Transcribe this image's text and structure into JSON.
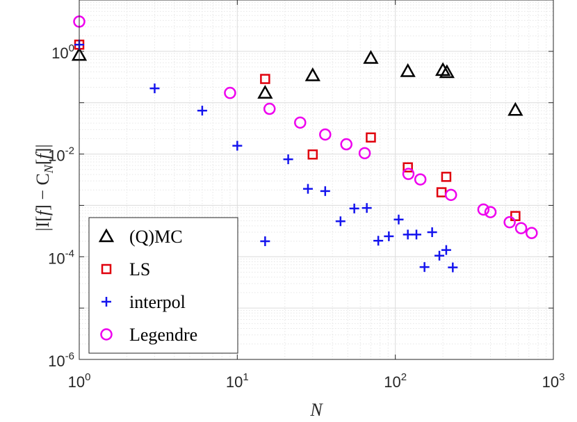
{
  "chart_data": {
    "type": "scatter",
    "x_scale": "log",
    "y_scale": "log",
    "xlim": [
      1,
      1000
    ],
    "ylim": [
      1e-06,
      10
    ],
    "grid": true,
    "minor_grid": true,
    "xlabel": "N",
    "ylabel": "|I[f] − C_N[f]|",
    "ylabel_parts": {
      "pre": "|I[",
      "f1": "f",
      "mid": "] − C",
      "sub": "N",
      "open": "[",
      "f2": "f",
      "post": "]|"
    },
    "xticks": [
      {
        "value": 1,
        "base": "10",
        "exp": "0"
      },
      {
        "value": 10,
        "base": "10",
        "exp": "1"
      },
      {
        "value": 100,
        "base": "10",
        "exp": "2"
      },
      {
        "value": 1000,
        "base": "10",
        "exp": "3"
      }
    ],
    "yticks": [
      {
        "value": 1,
        "base": "10",
        "exp": "0"
      },
      {
        "value": 0.01,
        "base": "10",
        "exp": "-2"
      },
      {
        "value": 0.0001,
        "base": "10",
        "exp": "-4"
      },
      {
        "value": 1e-06,
        "base": "10",
        "exp": "-6"
      }
    ],
    "legend_position": "bottom-left",
    "series": [
      {
        "name": "(Q)MC",
        "marker": "triangle",
        "color": "#000000",
        "points": [
          [
            1,
            0.85
          ],
          [
            15,
            0.155
          ],
          [
            30,
            0.34
          ],
          [
            70,
            0.74
          ],
          [
            120,
            0.41
          ],
          [
            200,
            0.43
          ],
          [
            212,
            0.39
          ],
          [
            575,
            0.072
          ]
        ]
      },
      {
        "name": "LS",
        "marker": "square",
        "color": "#e0000d",
        "points": [
          [
            1,
            1.35
          ],
          [
            15,
            0.29
          ],
          [
            30,
            0.0098
          ],
          [
            70,
            0.021
          ],
          [
            120,
            0.0055
          ],
          [
            196,
            0.0018
          ],
          [
            210,
            0.0036
          ],
          [
            575,
            0.00062
          ]
        ]
      },
      {
        "name": "interpol",
        "marker": "plus",
        "color": "#1414ee",
        "points": [
          [
            1,
            1.35
          ],
          [
            3,
            0.19
          ],
          [
            6,
            0.07
          ],
          [
            10,
            0.0145
          ],
          [
            15,
            0.0002
          ],
          [
            21,
            0.0079
          ],
          [
            28,
            0.0021
          ],
          [
            36,
            0.0019
          ],
          [
            45,
            0.00049
          ],
          [
            55,
            0.00087
          ],
          [
            66,
            0.00089
          ],
          [
            78,
            0.000205
          ],
          [
            91,
            0.00025
          ],
          [
            105,
            0.00053
          ],
          [
            120,
            0.00027
          ],
          [
            136,
            0.00027
          ],
          [
            153,
            6.3e-05
          ],
          [
            171,
            0.0003
          ],
          [
            190,
            0.000105
          ],
          [
            210,
            0.000135
          ],
          [
            231,
            6.2e-05
          ]
        ]
      },
      {
        "name": "Legendre",
        "marker": "circle",
        "color": "#ee00ee",
        "points": [
          [
            1,
            3.8
          ],
          [
            9,
            0.155
          ],
          [
            16,
            0.076
          ],
          [
            25,
            0.041
          ],
          [
            36,
            0.024
          ],
          [
            49,
            0.0155
          ],
          [
            64,
            0.0104
          ],
          [
            121,
            0.0041
          ],
          [
            144,
            0.0032
          ],
          [
            225,
            0.0016
          ],
          [
            361,
            0.00083
          ],
          [
            400,
            0.00074
          ],
          [
            529,
            0.00047
          ],
          [
            625,
            0.00036
          ],
          [
            729,
            0.00029
          ]
        ]
      }
    ]
  }
}
